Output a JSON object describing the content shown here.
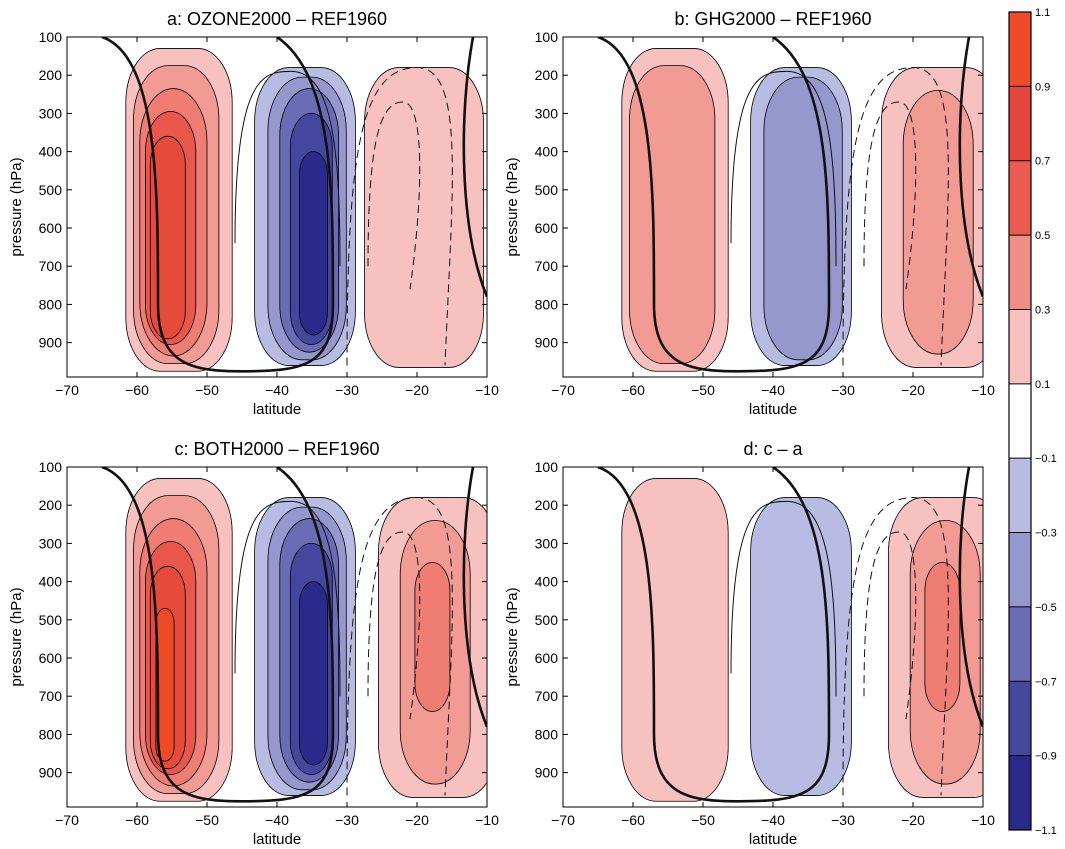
{
  "chart_data": [
    {
      "panel": "a",
      "type": "contour",
      "title": "a:  OZONE2000 – REF1960",
      "xlabel": "latitude",
      "ylabel": "pressure (hPa)",
      "xlim": [
        -70,
        -10
      ],
      "ylim": [
        100,
        990
      ],
      "y_reversed": true,
      "xticks": [
        -70,
        -60,
        -50,
        -40,
        -30,
        -20,
        -10
      ],
      "xtick_labels": [
        "−70",
        "−60",
        "−50",
        "−40",
        "−30",
        "−20",
        "−10"
      ],
      "yticks": [
        100,
        200,
        300,
        400,
        500,
        600,
        700,
        800,
        900
      ],
      "cells": [
        {
          "x": -54,
          "sign": 1,
          "max_level": 5
        },
        {
          "x": -36,
          "sign": -1,
          "max_level": 5
        },
        {
          "x": -19,
          "sign": 1,
          "max_level": 1
        }
      ]
    },
    {
      "panel": "b",
      "type": "contour",
      "title": "b:  GHG2000 – REF1960",
      "xlabel": "latitude",
      "ylabel": "pressure (hPa)",
      "xlim": [
        -70,
        -10
      ],
      "ylim": [
        100,
        990
      ],
      "y_reversed": true,
      "xticks": [
        -70,
        -60,
        -50,
        -40,
        -30,
        -20,
        -10
      ],
      "xtick_labels": [
        "−70",
        "−60",
        "−50",
        "−40",
        "−30",
        "−20",
        "−10"
      ],
      "yticks": [
        100,
        200,
        300,
        400,
        500,
        600,
        700,
        800,
        900
      ],
      "cells": [
        {
          "x": -54,
          "sign": 1,
          "max_level": 2
        },
        {
          "x": -36,
          "sign": -1,
          "max_level": 2
        },
        {
          "x": -16,
          "sign": 1,
          "max_level": 2
        }
      ]
    },
    {
      "panel": "c",
      "type": "contour",
      "title": "c:  BOTH2000 – REF1960",
      "xlabel": "latitude",
      "ylabel": "pressure (hPa)",
      "xlim": [
        -70,
        -10
      ],
      "ylim": [
        100,
        990
      ],
      "y_reversed": true,
      "xticks": [
        -70,
        -60,
        -50,
        -40,
        -30,
        -20,
        -10
      ],
      "xtick_labels": [
        "−70",
        "−60",
        "−50",
        "−40",
        "−30",
        "−20",
        "−10"
      ],
      "yticks": [
        100,
        200,
        300,
        400,
        500,
        600,
        700,
        800,
        900
      ],
      "cells": [
        {
          "x": -54,
          "sign": 1,
          "max_level": 6
        },
        {
          "x": -36,
          "sign": -1,
          "max_level": 5
        },
        {
          "x": -17,
          "sign": 1,
          "max_level": 3
        }
      ]
    },
    {
      "panel": "d",
      "type": "contour",
      "title": "d:  c – a",
      "xlabel": "latitude",
      "ylabel": "pressure (hPa)",
      "xlim": [
        -70,
        -10
      ],
      "ylim": [
        100,
        990
      ],
      "y_reversed": true,
      "xticks": [
        -70,
        -60,
        -50,
        -40,
        -30,
        -20,
        -10
      ],
      "xtick_labels": [
        "−70",
        "−60",
        "−50",
        "−40",
        "−30",
        "−20",
        "−10"
      ],
      "yticks": [
        100,
        200,
        300,
        400,
        500,
        600,
        700,
        800,
        900
      ],
      "cells": [
        {
          "x": -54,
          "sign": 1,
          "max_level": 1
        },
        {
          "x": -36,
          "sign": -1,
          "max_level": 1
        },
        {
          "x": -15,
          "sign": 1,
          "max_level": 3
        }
      ]
    }
  ],
  "colorbar": {
    "levels": [
      1.1,
      0.9,
      0.7,
      0.5,
      0.3,
      0.1,
      -0.1,
      -0.3,
      -0.5,
      -0.7,
      -0.9,
      -1.1
    ],
    "labels": [
      "1.1",
      "0.9",
      "0.7",
      "0.5",
      "0.3",
      "0.1",
      "−0.1",
      "−0.3",
      "−0.5",
      "−0.7",
      "−0.9",
      "−1.1"
    ],
    "colors": [
      "#ee4a2c",
      "#e5463c",
      "#eb5b4f",
      "#f08d85",
      "#f7c1bf",
      "#ffffff",
      "#b8bce2",
      "#9498cc",
      "#6a6db5",
      "#45469e",
      "#2b2a8a"
    ]
  },
  "colors": {
    "positive": [
      "#f7c1bf",
      "#f29a94",
      "#ef7d73",
      "#e9574c",
      "#e64a3a",
      "#ef4a26"
    ],
    "negative": [
      "#b8bce2",
      "#9498cc",
      "#6a6db5",
      "#45469e",
      "#2b2a8a",
      "#2b2a8a"
    ]
  }
}
